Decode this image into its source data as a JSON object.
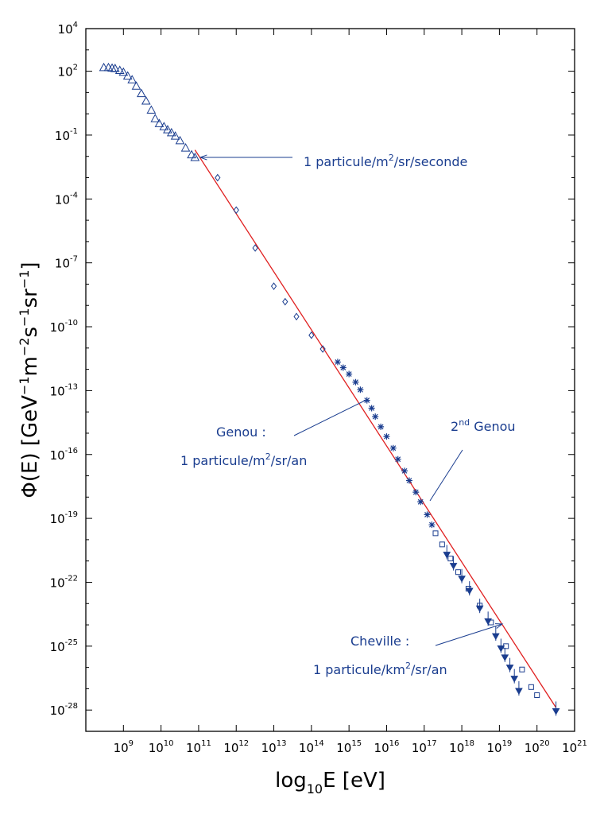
{
  "chart_data": {
    "type": "scatter",
    "xscale": "log",
    "yscale": "log",
    "xlim": [
      100000000,
      1000000000000000000000
    ],
    "ylim": [
      1e-29,
      10000
    ],
    "xlabel": {
      "pre": "log",
      "sub": "10",
      "post": "E [eV]"
    },
    "ylabel": {
      "parts": [
        {
          "t": "Φ(E) [GeV",
          "sup": false
        },
        {
          "t": "−1",
          "sup": true
        },
        {
          "t": "m",
          "sup": false
        },
        {
          "t": "−2",
          "sup": true
        },
        {
          "t": "s",
          "sup": false
        },
        {
          "t": "−1",
          "sup": true
        },
        {
          "t": "sr",
          "sup": false
        },
        {
          "t": "−1",
          "sup": true
        },
        {
          "t": "]",
          "sup": false
        }
      ]
    },
    "x_ticks": [
      {
        "base": "10",
        "exp": "9",
        "value": 1000000000.0
      },
      {
        "base": "10",
        "exp": "10",
        "value": 10000000000.0
      },
      {
        "base": "10",
        "exp": "11",
        "value": 100000000000.0
      },
      {
        "base": "10",
        "exp": "12",
        "value": 1000000000000.0
      },
      {
        "base": "10",
        "exp": "13",
        "value": 10000000000000.0
      },
      {
        "base": "10",
        "exp": "14",
        "value": 100000000000000.0
      },
      {
        "base": "10",
        "exp": "15",
        "value": 1000000000000000.0
      },
      {
        "base": "10",
        "exp": "16",
        "value": 1e+16
      },
      {
        "base": "10",
        "exp": "17",
        "value": 1e+17
      },
      {
        "base": "10",
        "exp": "18",
        "value": 1e+18
      },
      {
        "base": "10",
        "exp": "19",
        "value": 1e+19
      },
      {
        "base": "10",
        "exp": "20",
        "value": 1e+20
      },
      {
        "base": "10",
        "exp": "21",
        "value": 1e+21
      }
    ],
    "y_ticks": [
      {
        "base": "10",
        "exp": "4",
        "value": 10000.0
      },
      {
        "base": "10",
        "exp": "2",
        "value": 100.0
      },
      {
        "base": "10",
        "exp": "-1",
        "value": 0.1
      },
      {
        "base": "10",
        "exp": "-4",
        "value": 0.0001
      },
      {
        "base": "10",
        "exp": "-7",
        "value": 1e-07
      },
      {
        "base": "10",
        "exp": "-10",
        "value": 1e-10
      },
      {
        "base": "10",
        "exp": "-13",
        "value": 1e-13
      },
      {
        "base": "10",
        "exp": "-16",
        "value": 1e-16
      },
      {
        "base": "10",
        "exp": "-19",
        "value": 1e-19
      },
      {
        "base": "10",
        "exp": "-22",
        "value": 1e-22
      },
      {
        "base": "10",
        "exp": "-25",
        "value": 1e-25
      },
      {
        "base": "10",
        "exp": "-28",
        "value": 1e-28
      }
    ],
    "reference_line": {
      "color": "#e02020",
      "points": [
        [
          80000000000.0,
          0.02
        ],
        [
          3.2e+20,
          1.3e-28
        ]
      ]
    },
    "series": [
      {
        "marker": "triangle-open",
        "color": "#1a3d8f",
        "points": [
          [
            300000000.0,
            150
          ],
          [
            400000000.0,
            150
          ],
          [
            500000000.0,
            140
          ],
          [
            600000000.0,
            135
          ],
          [
            800000000.0,
            110
          ],
          [
            1000000000.0,
            90
          ],
          [
            1300000000.0,
            60
          ],
          [
            1700000000.0,
            40
          ],
          [
            2200000000.0,
            20
          ],
          [
            3000000000.0,
            9
          ],
          [
            4000000000.0,
            4
          ],
          [
            5500000000.0,
            1.5
          ],
          [
            7000000000.0,
            0.6
          ],
          [
            9000000000.0,
            0.35
          ],
          [
            12000000000.0,
            0.25
          ],
          [
            15000000000.0,
            0.18
          ],
          [
            19000000000.0,
            0.13
          ],
          [
            24000000000.0,
            0.09
          ],
          [
            32000000000.0,
            0.055
          ],
          [
            45000000000.0,
            0.025
          ],
          [
            65000000000.0,
            0.012
          ],
          [
            80000000000.0,
            0.009
          ]
        ]
      },
      {
        "marker": "diamond-open",
        "color": "#1a3d8f",
        "points": [
          [
            320000000000.0,
            0.001
          ],
          [
            1000000000000.0,
            3e-05
          ],
          [
            3200000000000.0,
            5e-07
          ],
          [
            10000000000000.0,
            8e-09
          ],
          [
            20000000000000.0,
            1.5e-09
          ],
          [
            40000000000000.0,
            3e-10
          ],
          [
            100000000000000.0,
            4e-11
          ],
          [
            200000000000000.0,
            9e-12
          ]
        ]
      },
      {
        "marker": "star",
        "color": "#1a3d8f",
        "points": [
          [
            500000000000000.0,
            2.2e-12
          ],
          [
            700000000000000.0,
            1.2e-12
          ],
          [
            1000000000000000.0,
            6e-13
          ],
          [
            1500000000000000.0,
            2.5e-13
          ],
          [
            2000000000000000.0,
            1.1e-13
          ],
          [
            3000000000000000.0,
            3.5e-14
          ],
          [
            4000000000000000.0,
            1.5e-14
          ],
          [
            5000000000000000.0,
            6e-15
          ],
          [
            7000000000000000.0,
            2e-15
          ],
          [
            1e+16,
            7e-16
          ],
          [
            1.5e+16,
            2e-16
          ],
          [
            2e+16,
            6e-17
          ],
          [
            3e+16,
            1.7e-17
          ],
          [
            4e+16,
            6e-18
          ],
          [
            6e+16,
            1.7e-18
          ],
          [
            8e+16,
            6e-19
          ],
          [
            1.2e+17,
            1.5e-19
          ],
          [
            1.6e+17,
            5e-20
          ]
        ]
      },
      {
        "marker": "square-open",
        "color": "#1a3d8f",
        "points": [
          [
            2e+17,
            2e-20
          ],
          [
            3e+17,
            6e-21
          ],
          [
            5e+17,
            1.3e-21
          ],
          [
            8e+17,
            3e-22
          ],
          [
            1.5e+18,
            5e-23
          ],
          [
            3e+18,
            8e-24
          ],
          [
            6e+18,
            1.3e-24
          ],
          [
            1.5e+19,
            1e-25
          ],
          [
            4e+19,
            8e-27
          ],
          [
            7e+19,
            1.2e-27
          ],
          [
            1e+20,
            5e-28
          ]
        ]
      },
      {
        "marker": "triangle-down-filled",
        "color": "#1a3d8f",
        "points": [
          [
            4e+17,
            2e-21
          ],
          [
            6e+17,
            6e-22
          ],
          [
            1e+18,
            1.5e-22
          ],
          [
            1.6e+18,
            4e-23
          ],
          [
            3e+18,
            6e-24
          ],
          [
            5e+18,
            1.5e-24
          ],
          [
            8e+18,
            3e-25
          ],
          [
            1.1e+19,
            8e-26
          ],
          [
            1.4e+19,
            3e-26
          ],
          [
            1.9e+19,
            1e-26
          ],
          [
            2.5e+19,
            3e-27
          ],
          [
            3.3e+19,
            8e-28
          ],
          [
            3.2e+20,
            9e-29
          ]
        ]
      }
    ],
    "annotations": [
      {
        "id": "particule-seconde",
        "segments": [
          {
            "t": "1 particule/m",
            "sup": false
          },
          {
            "t": "2",
            "sup": true
          },
          {
            "t": "/sr/seconde",
            "sup": false
          }
        ]
      },
      {
        "id": "genou-title",
        "segments": [
          {
            "t": "Genou :",
            "sup": false
          }
        ]
      },
      {
        "id": "genou-rate",
        "segments": [
          {
            "t": "1 particule/m",
            "sup": false
          },
          {
            "t": "2",
            "sup": true
          },
          {
            "t": "/sr/an",
            "sup": false
          }
        ]
      },
      {
        "id": "second-genou",
        "segments": [
          {
            "t": "2",
            "sup": false
          },
          {
            "t": "nd",
            "sup": true
          },
          {
            "t": " Genou",
            "sup": false
          }
        ]
      },
      {
        "id": "cheville-title",
        "segments": [
          {
            "t": "Cheville :",
            "sup": false
          }
        ]
      },
      {
        "id": "cheville-rate",
        "segments": [
          {
            "t": "1 particule/km",
            "sup": false
          },
          {
            "t": "2",
            "sup": true
          },
          {
            "t": "/sr/an",
            "sup": false
          }
        ]
      }
    ]
  }
}
